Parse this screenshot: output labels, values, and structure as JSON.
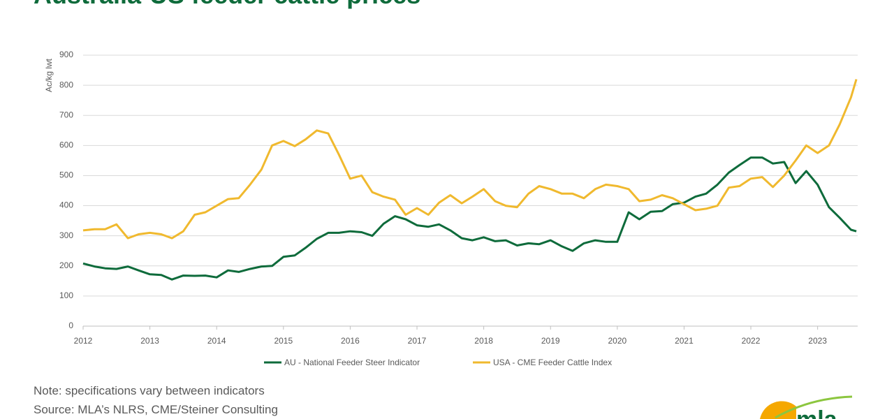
{
  "chart_data": {
    "type": "line",
    "title": "Australia-US feeder cattle prices",
    "y_label": "Ac/kg lwt",
    "x": [
      2012,
      2012.17,
      2012.33,
      2012.5,
      2012.67,
      2012.83,
      2013,
      2013.17,
      2013.33,
      2013.5,
      2013.67,
      2013.83,
      2014,
      2014.17,
      2014.33,
      2014.5,
      2014.67,
      2014.83,
      2015,
      2015.17,
      2015.33,
      2015.5,
      2015.67,
      2015.83,
      2016,
      2016.17,
      2016.33,
      2016.5,
      2016.67,
      2016.83,
      2017,
      2017.17,
      2017.33,
      2017.5,
      2017.67,
      2017.83,
      2018,
      2018.17,
      2018.33,
      2018.5,
      2018.67,
      2018.83,
      2019,
      2019.17,
      2019.33,
      2019.5,
      2019.67,
      2019.83,
      2020,
      2020.17,
      2020.33,
      2020.5,
      2020.67,
      2020.83,
      2021,
      2021.17,
      2021.33,
      2021.5,
      2021.67,
      2021.83,
      2022,
      2022.17,
      2022.33,
      2022.5,
      2022.67,
      2022.83,
      2023,
      2023.17,
      2023.33,
      2023.5,
      2023.58
    ],
    "series": [
      {
        "name": "AU - National Feeder Steer Indicator",
        "color": "#0e6b3b",
        "values": [
          208,
          198,
          192,
          190,
          198,
          185,
          172,
          170,
          155,
          168,
          167,
          168,
          162,
          185,
          180,
          190,
          198,
          200,
          230,
          235,
          260,
          290,
          310,
          310,
          315,
          312,
          300,
          340,
          365,
          355,
          335,
          330,
          338,
          318,
          292,
          285,
          295,
          282,
          285,
          268,
          275,
          272,
          285,
          265,
          250,
          275,
          285,
          280,
          280,
          378,
          355,
          380,
          382,
          405,
          410,
          430,
          440,
          470,
          510,
          535,
          560,
          560,
          540,
          545,
          475,
          515,
          470,
          395,
          360,
          320,
          315
        ]
      },
      {
        "name": "USA - CME Feeder Cattle Index",
        "color": "#f0b92e",
        "values": [
          318,
          322,
          322,
          338,
          292,
          305,
          310,
          305,
          292,
          315,
          370,
          378,
          400,
          422,
          425,
          470,
          520,
          600,
          615,
          598,
          620,
          650,
          640,
          570,
          490,
          500,
          445,
          430,
          420,
          370,
          392,
          370,
          410,
          435,
          408,
          430,
          455,
          415,
          400,
          395,
          440,
          465,
          455,
          440,
          440,
          425,
          455,
          470,
          465,
          455,
          415,
          420,
          435,
          425,
          405,
          385,
          390,
          400,
          460,
          465,
          490,
          495,
          462,
          500,
          550,
          600,
          575,
          600,
          670,
          760,
          820
        ]
      }
    ],
    "xlim": [
      2012,
      2023.6
    ],
    "xticks": [
      2012,
      2013,
      2014,
      2015,
      2016,
      2017,
      2018,
      2019,
      2020,
      2021,
      2022,
      2023
    ],
    "ylim": [
      0,
      900
    ],
    "yticks": [
      0,
      100,
      200,
      300,
      400,
      500,
      600,
      700,
      800,
      900
    ],
    "grid": true,
    "legend": "bottom",
    "notes": [
      "Note: specifications vary between indicators",
      "Source: MLA’s NLRS, CME/Steiner Consulting"
    ],
    "logo": "mla"
  }
}
